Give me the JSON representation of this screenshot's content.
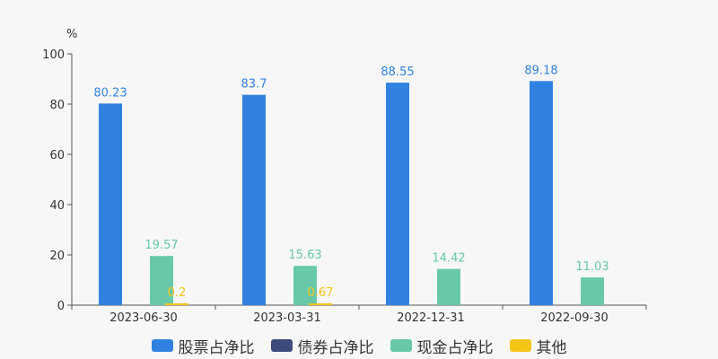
{
  "chart_data": {
    "type": "bar",
    "ylabel": "%",
    "ylim": [
      0,
      100
    ],
    "yticks": [
      0,
      20,
      40,
      60,
      80,
      100
    ],
    "categories": [
      "2023-06-30",
      "2023-03-31",
      "2022-12-31",
      "2022-09-30"
    ],
    "series": [
      {
        "name": "股票占净比",
        "color": "#3182e0",
        "values": [
          80.23,
          83.7,
          88.55,
          89.18
        ],
        "labels": [
          "80.23",
          "83.7",
          "88.55",
          "89.18"
        ]
      },
      {
        "name": "债券占净比",
        "color": "#3d4a7c",
        "values": [
          null,
          null,
          null,
          null
        ],
        "labels": [
          "",
          "",
          "",
          ""
        ]
      },
      {
        "name": "现金占净比",
        "color": "#68c9a8",
        "values": [
          19.57,
          15.63,
          14.42,
          11.03
        ],
        "labels": [
          "19.57",
          "15.63",
          "14.42",
          "11.03"
        ]
      },
      {
        "name": "其他",
        "color": "#f5c518",
        "values": [
          0.2,
          0.67,
          null,
          null
        ],
        "labels": [
          "0.2",
          "0.67",
          "",
          ""
        ]
      }
    ],
    "grid": false,
    "legend_position": "bottom"
  }
}
